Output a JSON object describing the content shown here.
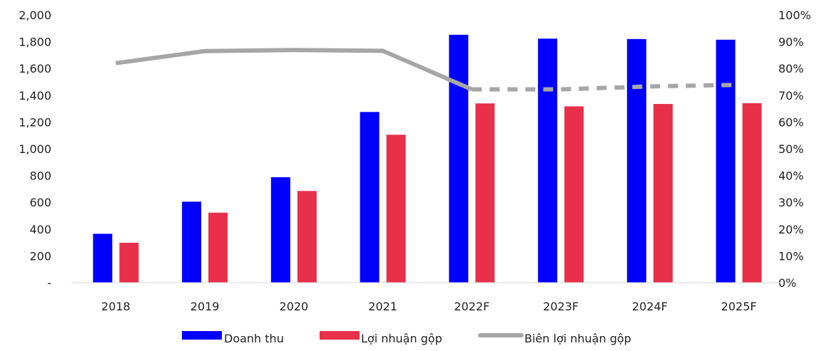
{
  "chart_data": {
    "type": "bar",
    "categories": [
      "2018",
      "2019",
      "2020",
      "2021",
      "2022F",
      "2023F",
      "2024F",
      "2025F"
    ],
    "series": [
      {
        "name": "Doanh thu",
        "kind": "bar",
        "axis": "left",
        "color": "#0000ff",
        "values": [
          365,
          605,
          788,
          1275,
          1852,
          1823,
          1820,
          1815
        ]
      },
      {
        "name": "Lợi nhuận gộp",
        "kind": "bar",
        "axis": "left",
        "color": "#e8304a",
        "values": [
          298,
          523,
          685,
          1105,
          1339,
          1317,
          1335,
          1341
        ]
      },
      {
        "name": "Biên lợi nhuận gộp",
        "kind": "line",
        "axis": "right",
        "color": "#a6a6a6",
        "values": [
          0.82,
          0.865,
          0.869,
          0.866,
          0.722,
          0.722,
          0.733,
          0.739
        ],
        "dashed_from_index": 4
      }
    ],
    "y_left": {
      "ylim": [
        0,
        2000
      ],
      "ticks": [
        0,
        200,
        400,
        600,
        800,
        1000,
        1200,
        1400,
        1600,
        1800,
        2000
      ],
      "tick_labels": [
        "-",
        "200",
        "400",
        "600",
        "800",
        "1,000",
        "1,200",
        "1,400",
        "1,600",
        "1,800",
        "2,000"
      ]
    },
    "y_right": {
      "ylim": [
        0,
        1
      ],
      "ticks": [
        0,
        0.1,
        0.2,
        0.3,
        0.4,
        0.5,
        0.6,
        0.7,
        0.8,
        0.9,
        1.0
      ],
      "tick_labels": [
        "0%",
        "10%",
        "20%",
        "30%",
        "40%",
        "50%",
        "60%",
        "70%",
        "80%",
        "90%",
        "100%"
      ]
    },
    "grid": false,
    "legend_position": "bottom-center"
  }
}
